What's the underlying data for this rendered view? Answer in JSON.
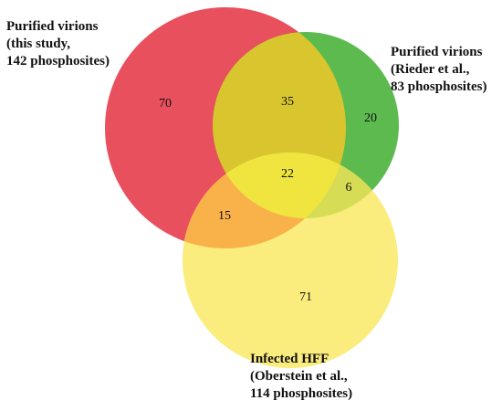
{
  "diagram": {
    "type": "venn-3",
    "sets": [
      {
        "id": "A",
        "label_lines": [
          "Purified virions",
          "(this study,",
          "142 phosphosites)"
        ],
        "color": "#e8505e"
      },
      {
        "id": "B",
        "label_lines": [
          "Purified virions",
          "(Rieder et al.,",
          "83 phosphosites)"
        ],
        "color": "#5dba4e"
      },
      {
        "id": "C",
        "label_lines": [
          "Infected HFF",
          "(Oberstein et al.,",
          "114 phosphosites)"
        ],
        "color": "#fbec7e"
      }
    ],
    "regions": {
      "A_only": "70",
      "A_B": "35",
      "B_only": "20",
      "A_B_C": "22",
      "B_C": "6",
      "A_C": "15",
      "C_only": "71"
    },
    "overlap_colors": {
      "A_B": "#d9c62f",
      "A_C": "#f9b249",
      "B_C": "#d6dd55",
      "A_B_C": "#f0e53e"
    }
  }
}
